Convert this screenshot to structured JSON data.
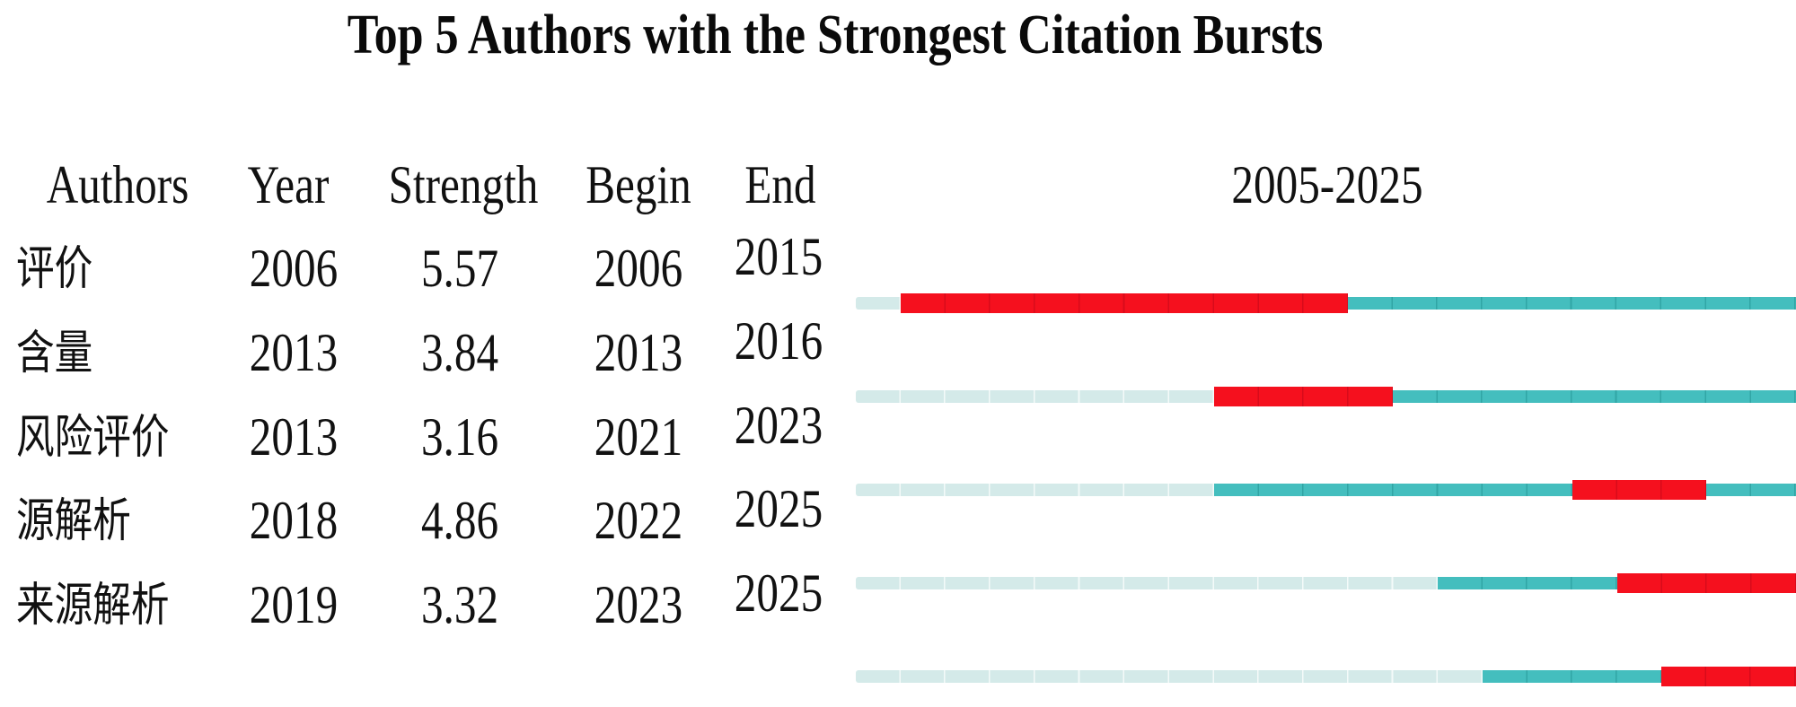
{
  "title": "Top 5 Authors with the Strongest Citation Bursts",
  "header": {
    "authors": "Authors",
    "year": "Year",
    "strength": "Strength",
    "begin": "Begin",
    "end": "End",
    "period": "2005-2025"
  },
  "colors": {
    "burst": "#F5101E",
    "active": "#44BEBE",
    "inactive": "#D4EAE9",
    "text": "#111111"
  },
  "chart_data": {
    "type": "table",
    "title": "Top 5 Authors with the Strongest Citation Bursts",
    "columns": [
      "Authors",
      "Year",
      "Strength",
      "Begin",
      "End",
      "2005-2025"
    ],
    "timeline": {
      "start": 2005,
      "end": 2025
    },
    "rows": [
      {
        "author": "评价",
        "year": 2006,
        "strength": 5.57,
        "begin": 2006,
        "end": 2015
      },
      {
        "author": "含量",
        "year": 2013,
        "strength": 3.84,
        "begin": 2013,
        "end": 2016
      },
      {
        "author": "风险评价",
        "year": 2013,
        "strength": 3.16,
        "begin": 2021,
        "end": 2023
      },
      {
        "author": "源解析",
        "year": 2018,
        "strength": 4.86,
        "begin": 2022,
        "end": 2025
      },
      {
        "author": "来源解析",
        "year": 2019,
        "strength": 3.32,
        "begin": 2023,
        "end": 2025
      }
    ]
  }
}
